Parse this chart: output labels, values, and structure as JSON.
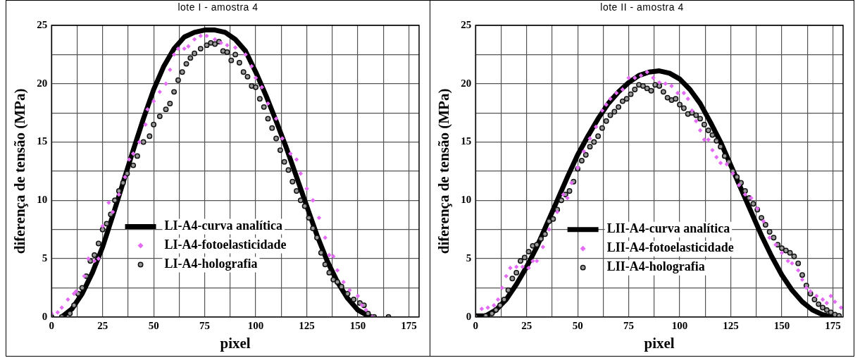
{
  "chart_data": [
    {
      "type": "line",
      "title": "lote I - amostra 4",
      "xlabel": "pixel",
      "ylabel": "diferença de tensão (MPa)",
      "xlim": [
        0,
        180
      ],
      "ylim": [
        0,
        25
      ],
      "xticks": [
        0,
        {
          "value": 12.5,
          "label": null
        },
        25,
        {
          "value": 37.5,
          "label": null
        },
        50,
        {
          "value": 62.5,
          "label": null
        },
        75,
        {
          "value": 87.5,
          "label": null
        },
        100,
        {
          "value": 112.5,
          "label": null
        },
        125,
        {
          "value": 137.5,
          "label": null
        },
        150,
        {
          "value": 162.5,
          "label": null
        },
        175
      ],
      "yticks": [
        0,
        {
          "value": 2.5,
          "label": null
        },
        5,
        {
          "value": 7.5,
          "label": null
        },
        10,
        {
          "value": 12.5,
          "label": null
        },
        15,
        {
          "value": 17.5,
          "label": null
        },
        20,
        {
          "value": 22.5,
          "label": null
        },
        25
      ],
      "grid": true,
      "legend": "bottom left",
      "series": [
        {
          "name": "LI-A4-curva analítica",
          "marker": "none",
          "color": "#000000",
          "x": [
            5,
            10,
            15,
            20,
            25,
            30,
            35,
            40,
            45,
            50,
            55,
            60,
            65,
            70,
            75,
            80,
            85,
            90,
            95,
            100,
            105,
            110,
            115,
            120,
            125,
            130,
            135,
            140,
            145,
            150,
            155,
            157
          ],
          "values": [
            0,
            0.7,
            2,
            3.8,
            6,
            8.7,
            11.5,
            14.3,
            17,
            19.5,
            21.5,
            23,
            24,
            24.4,
            24.6,
            24.6,
            24.4,
            23.8,
            22.8,
            21,
            19,
            16.8,
            14.5,
            12,
            9.5,
            7,
            4.8,
            3,
            1.6,
            0.6,
            0.1,
            0
          ]
        },
        {
          "name": "LI-A4-fotoelasticidade",
          "type": "scatter",
          "marker": "diamond",
          "color": "#e46cf5",
          "x": [
            0,
            3,
            5,
            8,
            11,
            12,
            16,
            18,
            21,
            23,
            25,
            28,
            30,
            33,
            36,
            38,
            40,
            43,
            46,
            47,
            50,
            53,
            56,
            58,
            60,
            62,
            65,
            67,
            70,
            73,
            76,
            80,
            83,
            86,
            90,
            95,
            98,
            100,
            103,
            106,
            110,
            113,
            117,
            120,
            122,
            125,
            128,
            131,
            134,
            136,
            138,
            140,
            143,
            146,
            150,
            152,
            154,
            157
          ],
          "values": [
            0.3,
            0.4,
            0.8,
            1.5,
            2,
            2.2,
            3.5,
            5,
            4.8,
            5,
            7.8,
            9.8,
            9,
            10.5,
            12,
            13.5,
            14,
            15,
            16.5,
            17.8,
            18.5,
            19.3,
            20,
            21.2,
            22.5,
            23,
            23,
            23.2,
            23.8,
            24.1,
            24.1,
            23.8,
            23.5,
            23.3,
            23.1,
            22.5,
            21.5,
            20.5,
            19.7,
            18.3,
            17,
            15.3,
            14,
            13.5,
            12.3,
            11,
            10,
            8.5,
            6.8,
            5.3,
            5.2,
            4,
            3,
            2.3,
            1.8,
            1,
            0.6,
            0
          ]
        },
        {
          "name": "LI-A4-holografia",
          "type": "scatter",
          "marker": "circle",
          "color": "#9a9a9a",
          "x": [
            0,
            5,
            9,
            11,
            13,
            15,
            17,
            19,
            21,
            23,
            25,
            27,
            29,
            31,
            33,
            35,
            37,
            40,
            42,
            45,
            48,
            50,
            53,
            56,
            58,
            60,
            62,
            64,
            66,
            68,
            70,
            73,
            76,
            78,
            80,
            82,
            84,
            86,
            88,
            90,
            92,
            94,
            96,
            98,
            100,
            102,
            104,
            106,
            108,
            110,
            112,
            114,
            116,
            118,
            120,
            122,
            124,
            126,
            128,
            130,
            132,
            134,
            136,
            138,
            140,
            142,
            145,
            148,
            151,
            153,
            155,
            158,
            165
          ],
          "values": [
            0,
            0,
            0.3,
            1,
            2,
            2.5,
            3.5,
            4.8,
            5.3,
            6.3,
            7.5,
            8,
            8.8,
            10,
            10.8,
            11.5,
            12.3,
            13,
            13.8,
            15,
            15.5,
            16.5,
            17.2,
            17.8,
            18.3,
            19.3,
            20.3,
            21,
            21.7,
            22.2,
            22.6,
            23,
            23.3,
            23.5,
            23.4,
            23.6,
            22.8,
            22.7,
            22,
            22.5,
            21.8,
            21,
            20.6,
            19.8,
            19.7,
            18.7,
            18,
            17,
            16.2,
            15.3,
            14.3,
            13.3,
            12.6,
            11.6,
            10.8,
            10,
            9.5,
            8.5,
            7.6,
            6.8,
            5.5,
            4.5,
            3.8,
            3.2,
            3,
            2.6,
            2,
            1.5,
            1.2,
            1,
            0.3,
            0,
            0
          ]
        }
      ]
    },
    {
      "type": "line",
      "title": "lote II - amostra 4",
      "xlabel": "pixel",
      "ylabel": "diferença de tensão (MPa)",
      "xlim": [
        0,
        180
      ],
      "ylim": [
        0,
        25
      ],
      "xticks": [
        0,
        {
          "value": 12.5,
          "label": null
        },
        25,
        {
          "value": 37.5,
          "label": null
        },
        50,
        {
          "value": 62.5,
          "label": null
        },
        75,
        {
          "value": 87.5,
          "label": null
        },
        100,
        {
          "value": 112.5,
          "label": null
        },
        125,
        {
          "value": 137.5,
          "label": null
        },
        150,
        {
          "value": 162.5,
          "label": null
        },
        175
      ],
      "yticks": [
        0,
        {
          "value": 2.5,
          "label": null
        },
        5,
        {
          "value": 7.5,
          "label": null
        },
        10,
        {
          "value": 12.5,
          "label": null
        },
        15,
        {
          "value": 17.5,
          "label": null
        },
        20,
        {
          "value": 22.5,
          "label": null
        },
        25
      ],
      "grid": true,
      "legend": "bottom",
      "series": [
        {
          "name": "LII-A4-curva analítica",
          "marker": "none",
          "color": "#000000",
          "x": [
            0,
            5,
            10,
            15,
            20,
            25,
            30,
            35,
            40,
            45,
            50,
            55,
            60,
            65,
            70,
            75,
            80,
            85,
            90,
            95,
            100,
            105,
            110,
            115,
            120,
            125,
            130,
            135,
            140,
            145,
            150,
            155,
            160,
            165,
            170,
            175
          ],
          "values": [
            0.1,
            0.1,
            0.6,
            1.5,
            2.8,
            4.3,
            6,
            8,
            10,
            12,
            13.9,
            15.5,
            17,
            18.3,
            19.3,
            20.1,
            20.7,
            21,
            21.1,
            20.9,
            20.4,
            19.5,
            18.3,
            16.7,
            15,
            13,
            11,
            9,
            7,
            5.2,
            3.6,
            2.3,
            1.3,
            0.6,
            0.2,
            0
          ]
        },
        {
          "name": "LII-A4-fotoelasticidade",
          "type": "scatter",
          "marker": "diamond",
          "color": "#e46cf5",
          "x": [
            3,
            6,
            9,
            11,
            13,
            15,
            17,
            20,
            23,
            26,
            28,
            30,
            33,
            36,
            40,
            43,
            45,
            47,
            50,
            53,
            56,
            59,
            62,
            64,
            66,
            69,
            72,
            75,
            78,
            81,
            84,
            87,
            90,
            93,
            96,
            99,
            102,
            104,
            106,
            108,
            110,
            112,
            114,
            116,
            118,
            120,
            123,
            126,
            129,
            132,
            135,
            138,
            141,
            144,
            147,
            150,
            153,
            155,
            158,
            160,
            162,
            164,
            167,
            170,
            172,
            174,
            176,
            179
          ],
          "values": [
            0.7,
            0.8,
            1,
            1.5,
            2.5,
            3.5,
            4.2,
            4.3,
            4.3,
            4.2,
            4.8,
            4.8,
            6,
            7.5,
            9,
            10.5,
            10.2,
            11.5,
            12.8,
            14.2,
            15.3,
            16.3,
            17.7,
            18.2,
            18.7,
            19.2,
            19.5,
            20.5,
            20.5,
            20.7,
            21,
            20.5,
            20.1,
            20,
            19.8,
            19.2,
            19.2,
            18.7,
            17.7,
            16.8,
            16,
            15.2,
            15.2,
            14.3,
            13.7,
            13.2,
            13.1,
            12.3,
            11.3,
            10.5,
            10.2,
            9.3,
            8.2,
            6.8,
            6.2,
            5.5,
            4.8,
            4.6,
            4,
            3.2,
            2.5,
            2.2,
            1.8,
            1.5,
            1.2,
            1.8,
            1.3,
            0.8
          ]
        },
        {
          "name": "LII-A4-holografia",
          "type": "scatter",
          "marker": "circle",
          "color": "#9a9a9a",
          "x": [
            0,
            5,
            8,
            10,
            12,
            14,
            16,
            18,
            20,
            22,
            24,
            26,
            28,
            30,
            32,
            34,
            36,
            38,
            40,
            42,
            44,
            46,
            48,
            50,
            52,
            54,
            56,
            58,
            60,
            62,
            64,
            66,
            68,
            70,
            72,
            74,
            76,
            78,
            80,
            82,
            84,
            86,
            88,
            90,
            92,
            94,
            96,
            98,
            100,
            102,
            104,
            106,
            108,
            110,
            112,
            114,
            116,
            118,
            120,
            122,
            124,
            126,
            128,
            130,
            132,
            134,
            136,
            138,
            140,
            142,
            144,
            146,
            148,
            150,
            152,
            154,
            156,
            158,
            160,
            162,
            164,
            166,
            168,
            170,
            172,
            174,
            176,
            178
          ],
          "values": [
            0,
            0.1,
            0.3,
            0.6,
            1,
            1.5,
            2.3,
            3.3,
            3.8,
            4.8,
            5.1,
            5.6,
            6.1,
            6.2,
            6.7,
            7.1,
            8.2,
            8.4,
            9.2,
            10,
            10.5,
            10.8,
            11.6,
            12.7,
            13.4,
            13.9,
            14.6,
            15,
            15.5,
            16.2,
            16.8,
            17.3,
            17.6,
            18,
            18.5,
            18.7,
            19.1,
            19.5,
            19.9,
            19.8,
            19.6,
            19.4,
            19.9,
            19.8,
            19.3,
            18.8,
            18.6,
            18.7,
            18.2,
            17.9,
            17.4,
            17.5,
            17.3,
            17,
            16.5,
            16,
            15.6,
            15.1,
            14.6,
            13.8,
            13.3,
            12.5,
            12,
            11.5,
            10.8,
            10.2,
            9.7,
            9.2,
            8.5,
            7.9,
            7.3,
            6.8,
            6.2,
            5.9,
            5.7,
            5.5,
            5.2,
            4.6,
            3.6,
            2.7,
            2,
            1.5,
            1.1,
            0.8,
            0.6,
            0.4,
            0.2,
            0.1
          ]
        }
      ]
    }
  ]
}
